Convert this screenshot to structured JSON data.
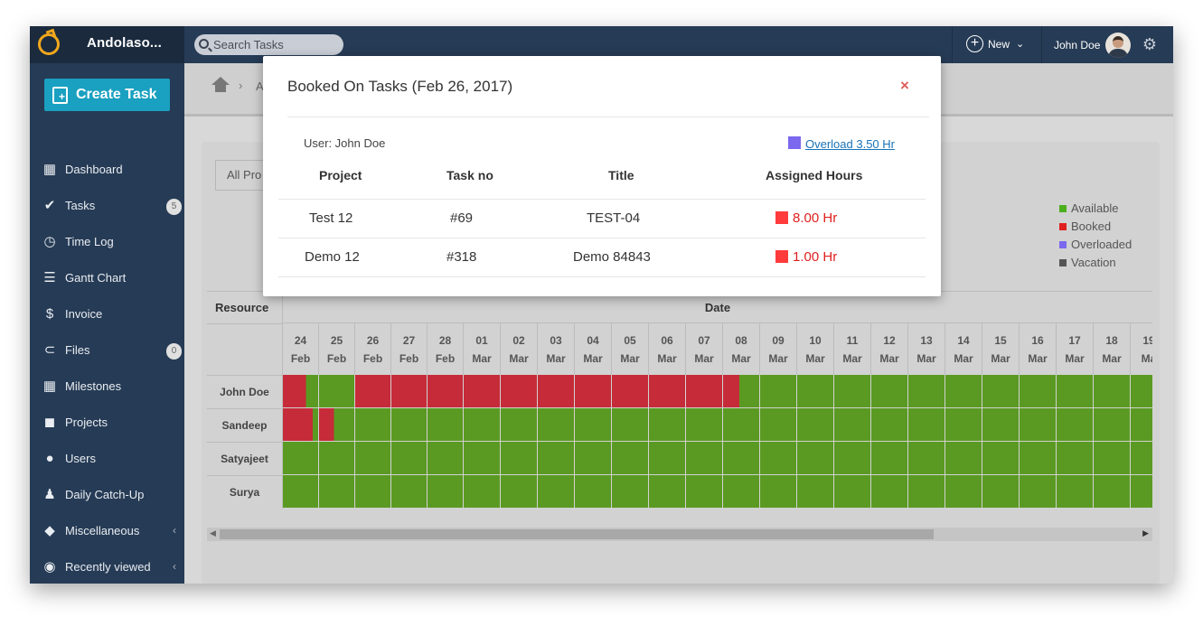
{
  "app": {
    "brand": "Andolaso...",
    "search_placeholder": "Search Tasks",
    "new_label": "New",
    "user_name": "John Doe"
  },
  "icons": {
    "brand": "orange-logo-icon",
    "search": "search-icon",
    "new": "plus-circle-icon",
    "settings": "gear-icon",
    "home": "home-icon",
    "close": "close-icon"
  },
  "sidebar": {
    "create_label": "Create Task",
    "items": [
      {
        "label": "Dashboard",
        "icon": "dashboard-icon",
        "glyph": "▦"
      },
      {
        "label": "Tasks",
        "icon": "clipboard-check-icon",
        "glyph": "✔",
        "badge": "5"
      },
      {
        "label": "Time Log",
        "icon": "clock-icon",
        "glyph": "◷"
      },
      {
        "label": "Gantt Chart",
        "icon": "gantt-icon",
        "glyph": "☰"
      },
      {
        "label": "Invoice",
        "icon": "invoice-icon",
        "glyph": "$"
      },
      {
        "label": "Files",
        "icon": "paperclip-icon",
        "glyph": "⊂",
        "badge": "0"
      },
      {
        "label": "Milestones",
        "icon": "grid-icon",
        "glyph": "▦"
      },
      {
        "label": "Projects",
        "icon": "briefcase-icon",
        "glyph": "◼"
      },
      {
        "label": "Users",
        "icon": "user-icon",
        "glyph": "●"
      },
      {
        "label": "Daily Catch-Up",
        "icon": "bell-icon",
        "glyph": "♟"
      },
      {
        "label": "Miscellaneous",
        "icon": "layers-icon",
        "glyph": "◆",
        "arrow": "‹"
      },
      {
        "label": "Recently viewed",
        "icon": "eye-icon",
        "glyph": "◉",
        "arrow": "‹"
      }
    ]
  },
  "breadcrumb": {
    "current": "A"
  },
  "filters": {
    "project_select": "All Pro"
  },
  "legend": [
    {
      "label": "Available",
      "color": "#4caf1e"
    },
    {
      "label": "Booked",
      "color": "#e02020"
    },
    {
      "label": "Overloaded",
      "color": "#7b68ee"
    },
    {
      "label": "Vacation",
      "color": "#555555"
    }
  ],
  "gantt": {
    "resource_header": "Resource",
    "date_header": "Date",
    "days": [
      {
        "d": "24",
        "m": "Feb"
      },
      {
        "d": "25",
        "m": "Feb"
      },
      {
        "d": "26",
        "m": "Feb"
      },
      {
        "d": "27",
        "m": "Feb"
      },
      {
        "d": "28",
        "m": "Feb"
      },
      {
        "d": "01",
        "m": "Mar"
      },
      {
        "d": "02",
        "m": "Mar"
      },
      {
        "d": "03",
        "m": "Mar"
      },
      {
        "d": "04",
        "m": "Mar"
      },
      {
        "d": "05",
        "m": "Mar"
      },
      {
        "d": "06",
        "m": "Mar"
      },
      {
        "d": "07",
        "m": "Mar"
      },
      {
        "d": "08",
        "m": "Mar"
      },
      {
        "d": "09",
        "m": "Mar"
      },
      {
        "d": "10",
        "m": "Mar"
      },
      {
        "d": "11",
        "m": "Mar"
      },
      {
        "d": "12",
        "m": "Mar"
      },
      {
        "d": "13",
        "m": "Mar"
      },
      {
        "d": "14",
        "m": "Mar"
      },
      {
        "d": "15",
        "m": "Mar"
      },
      {
        "d": "16",
        "m": "Mar"
      },
      {
        "d": "17",
        "m": "Mar"
      },
      {
        "d": "18",
        "m": "Mar"
      },
      {
        "d": "19",
        "m": "Ma"
      }
    ],
    "resources": [
      {
        "name": "John Doe",
        "booked_days": [
          "24 Feb",
          "26 Feb",
          "27 Feb",
          "28 Feb",
          "01 Mar",
          "02 Mar",
          "03 Mar",
          "04 Mar",
          "05 Mar",
          "06 Mar",
          "07 Mar",
          "08 Mar"
        ],
        "partial": {
          "24 Feb": 0.65,
          "08 Mar": 0.45
        }
      },
      {
        "name": "Sandeep",
        "booked_days": [
          "24 Feb",
          "25 Feb"
        ],
        "partial": {
          "24 Feb": 0.85,
          "25 Feb": 0.42
        }
      },
      {
        "name": "Satyajeet",
        "booked_days": [],
        "partial": {}
      },
      {
        "name": "Surya",
        "booked_days": [],
        "partial": {}
      }
    ],
    "colors": {
      "available": "#5a9a22",
      "booked": "#c62b39",
      "grid": "#b9c9a8"
    }
  },
  "modal": {
    "title": "Booked On Tasks (Feb 26, 2017)",
    "close_label": "×",
    "user_label": "User: John Doe",
    "overload_label": "Overload 3.50 Hr",
    "overload_color": "#7b68ee",
    "columns": [
      "Project",
      "Task no",
      "Title",
      "Assigned Hours"
    ],
    "rows": [
      {
        "project": "Test 12",
        "task_no": "#69",
        "title": "TEST-04",
        "hours": "8.00 Hr"
      },
      {
        "project": "Demo 12",
        "task_no": "#318",
        "title": "Demo 84843",
        "hours": "1.00 Hr"
      }
    ]
  }
}
